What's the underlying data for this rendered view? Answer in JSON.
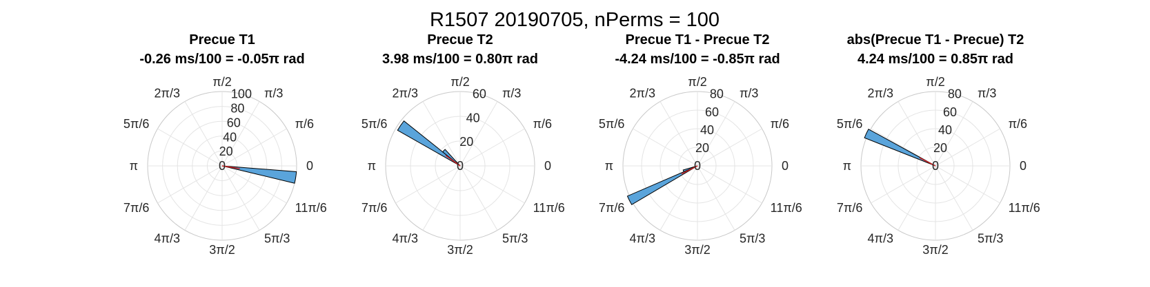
{
  "figure": {
    "suptitle": "R1507 20190705, nPerms = 100"
  },
  "chart_data": [
    {
      "type": "polar-histogram",
      "title_line1": "Precue T1",
      "title_line2": "-0.26 ms/100 = -0.05π rad",
      "r_ticks": [
        0,
        20,
        40,
        60,
        80,
        100
      ],
      "r_tick_labels": [
        "0",
        "20",
        "40",
        "60",
        "80",
        "100"
      ],
      "r_max": 100,
      "angle_tick_labels": [
        "0",
        "π/6",
        "π/3",
        "π/2",
        "2π/3",
        "5π/6",
        "π",
        "7π/6",
        "4π/3",
        "3π/2",
        "5π/3",
        "11π/6"
      ],
      "bins": [
        {
          "center_frac_pi": -0.05,
          "width_frac_pi": 0.05,
          "count": 100
        }
      ],
      "mean_angle_frac_pi": -0.05
    },
    {
      "type": "polar-histogram",
      "title_line1": "Precue T2",
      "title_line2": "3.98 ms/100 = 0.80π rad",
      "r_ticks": [
        0,
        20,
        40,
        60
      ],
      "r_tick_labels": [
        "0",
        "20",
        "40",
        "60"
      ],
      "r_max": 60,
      "angle_tick_labels": [
        "0",
        "π/6",
        "π/3",
        "π/2",
        "2π/3",
        "5π/6",
        "π",
        "7π/6",
        "4π/3",
        "3π/2",
        "5π/3",
        "11π/6"
      ],
      "bins": [
        {
          "center_frac_pi": 0.81,
          "width_frac_pi": 0.05,
          "count": 58
        },
        {
          "center_frac_pi": 0.76,
          "width_frac_pi": 0.05,
          "count": 18
        }
      ],
      "mean_angle_frac_pi": 0.8
    },
    {
      "type": "polar-histogram",
      "title_line1": "Precue T1 - Precue T2",
      "title_line2": "-4.24 ms/100 = -0.85π rad",
      "r_ticks": [
        0,
        20,
        40,
        60,
        80
      ],
      "r_tick_labels": [
        "0",
        "20",
        "40",
        "60",
        "80"
      ],
      "r_max": 80,
      "angle_tick_labels": [
        "0",
        "π/6",
        "π/3",
        "π/2",
        "2π/3",
        "5π/6",
        "π",
        "7π/6",
        "4π/3",
        "3π/2",
        "5π/3",
        "11π/6"
      ],
      "bins": [
        {
          "center_frac_pi": 1.15,
          "width_frac_pi": 0.04,
          "count": 82
        },
        {
          "center_frac_pi": 1.11,
          "width_frac_pi": 0.04,
          "count": 16
        }
      ],
      "mean_angle_frac_pi": 1.15
    },
    {
      "type": "polar-histogram",
      "title_line1": "abs(Precue T1 - Precue) T2",
      "title_line2": "4.24 ms/100 = 0.85π rad",
      "r_ticks": [
        0,
        20,
        40,
        60,
        80
      ],
      "r_tick_labels": [
        "0",
        "20",
        "40",
        "60",
        "80"
      ],
      "r_max": 80,
      "angle_tick_labels": [
        "0",
        "π/6",
        "π/3",
        "π/2",
        "2π/3",
        "5π/6",
        "π",
        "7π/6",
        "4π/3",
        "3π/2",
        "5π/3",
        "11π/6"
      ],
      "bins": [
        {
          "center_frac_pi": 0.86,
          "width_frac_pi": 0.04,
          "count": 82
        }
      ],
      "mean_angle_frac_pi": 0.85
    }
  ]
}
